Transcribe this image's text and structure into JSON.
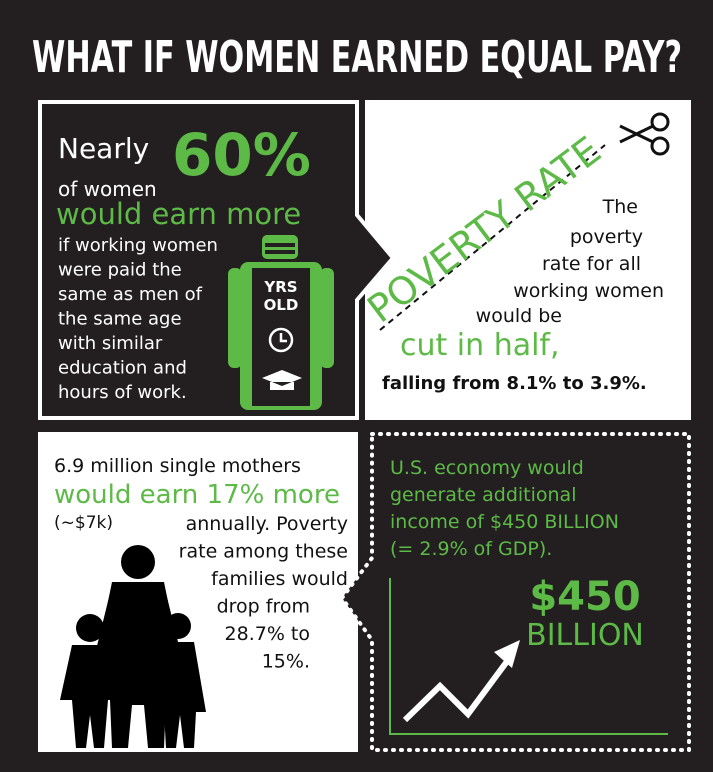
{
  "title": "WHAT IF WOMEN EARNED EQUAL PAY?",
  "pay_gap": {
    "intro": "Nearly",
    "stat": "60%",
    "subject": "of women",
    "headline": "would earn more",
    "lines": [
      "if working women",
      "were paid the",
      "same as men of",
      "the same age",
      "with similar",
      "education and",
      "hours of work."
    ],
    "figure_label": [
      "YRS",
      "OLD"
    ]
  },
  "poverty": {
    "stamp": "POVERTY RATE",
    "lines": [
      "The",
      "poverty",
      "rate for all",
      "working women",
      "would be"
    ],
    "headline": "cut in half,",
    "detail": "falling from 8.1% to 3.9%."
  },
  "mothers": {
    "intro": "6.9 million single mothers",
    "headline": "would earn 17% more",
    "aside": "(~$7k)",
    "lines": [
      "annually. Poverty",
      "rate among these",
      "families would",
      "drop from",
      "28.7% to",
      "15%."
    ]
  },
  "economy": {
    "lines": [
      "U.S. economy would",
      "generate additional",
      "income of $450 BILLION",
      "(= 2.9% of GDP)."
    ],
    "amount": "$450",
    "unit": "BILLION"
  }
}
